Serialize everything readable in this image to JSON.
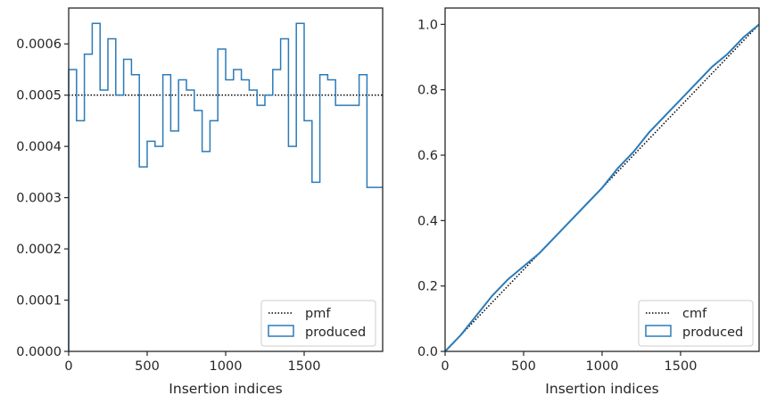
{
  "chart_data": [
    {
      "type": "histogram",
      "xlabel": "Insertion indices",
      "ylabel": "",
      "xlim": [
        0,
        2000
      ],
      "ylim": [
        0,
        0.00067
      ],
      "xticks": [
        0,
        500,
        1000,
        1500
      ],
      "xtick_labels": [
        "0",
        "500",
        "1000",
        "1500"
      ],
      "yticks": [
        0,
        0.0001,
        0.0002,
        0.0003,
        0.0004,
        0.0005,
        0.0006
      ],
      "ytick_labels": [
        "0.0000",
        "0.0001",
        "0.0002",
        "0.0003",
        "0.0004",
        "0.0005",
        "0.0006"
      ],
      "bin_width": 50,
      "series": [
        {
          "name": "pmf",
          "style": "dotted",
          "color": "#000000",
          "y": 0.0005
        },
        {
          "name": "produced",
          "style": "step",
          "color": "#2b7bb9",
          "x_edges": [
            0,
            50,
            100,
            150,
            200,
            250,
            300,
            350,
            400,
            450,
            500,
            550,
            600,
            650,
            700,
            750,
            800,
            850,
            900,
            950,
            1000,
            1050,
            1100,
            1150,
            1200,
            1250,
            1300,
            1350,
            1400,
            1450,
            1500,
            1550,
            1600,
            1650,
            1700,
            1750,
            1800,
            1850,
            1900,
            1950,
            2000
          ],
          "values": [
            0.00055,
            0.00045,
            0.00058,
            0.00064,
            0.00051,
            0.00061,
            0.0005,
            0.00057,
            0.00054,
            0.00036,
            0.00041,
            0.0004,
            0.00054,
            0.00043,
            0.00053,
            0.00051,
            0.00047,
            0.00039,
            0.00045,
            0.00059,
            0.00053,
            0.00055,
            0.00053,
            0.00051,
            0.00048,
            0.0005,
            0.00055,
            0.00061,
            0.0004,
            0.00064,
            0.00045,
            0.00033,
            0.00054,
            0.00053,
            0.00048,
            0.00048,
            0.00048,
            0.00054,
            0.00032,
            0.00032
          ]
        }
      ],
      "legend": {
        "placement": "lower right",
        "entries": [
          "pmf",
          "produced"
        ]
      }
    },
    {
      "type": "line",
      "xlabel": "Insertion indices",
      "ylabel": "",
      "xlim": [
        0,
        2000
      ],
      "ylim": [
        0,
        1.05
      ],
      "xticks": [
        0,
        500,
        1000,
        1500
      ],
      "xtick_labels": [
        "0",
        "500",
        "1000",
        "1500"
      ],
      "yticks": [
        0.0,
        0.2,
        0.4,
        0.6,
        0.8,
        1.0
      ],
      "ytick_labels": [
        "0.0",
        "0.2",
        "0.4",
        "0.6",
        "0.8",
        "1.0"
      ],
      "series": [
        {
          "name": "cmf",
          "style": "dotted",
          "color": "#000000",
          "x": [
            0,
            2000
          ],
          "y": [
            0,
            1
          ]
        },
        {
          "name": "produced",
          "style": "solid",
          "color": "#2b7bb9",
          "x": [
            0,
            100,
            200,
            300,
            400,
            500,
            600,
            700,
            800,
            900,
            1000,
            1100,
            1200,
            1300,
            1400,
            1500,
            1600,
            1700,
            1800,
            1900,
            2000
          ],
          "y": [
            0,
            0.05,
            0.11,
            0.17,
            0.22,
            0.26,
            0.3,
            0.35,
            0.4,
            0.45,
            0.5,
            0.56,
            0.61,
            0.67,
            0.72,
            0.77,
            0.82,
            0.87,
            0.91,
            0.96,
            1.0
          ]
        }
      ],
      "legend": {
        "placement": "lower right",
        "entries": [
          "cmf",
          "produced"
        ]
      }
    }
  ]
}
